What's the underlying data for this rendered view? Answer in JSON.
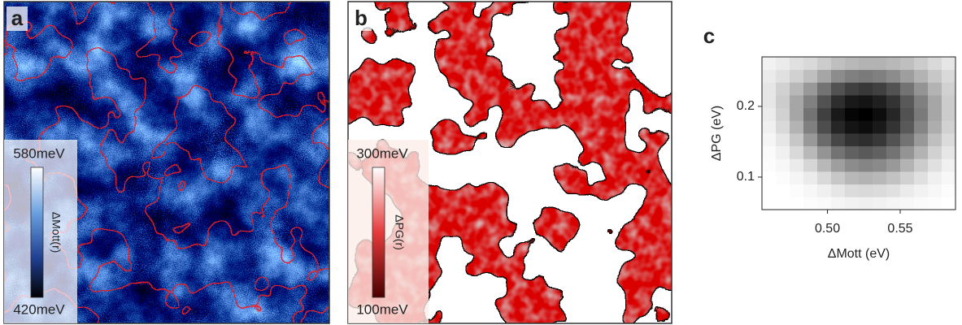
{
  "panels": [
    {
      "label": "a",
      "colorbar": {
        "max_label": "580meV",
        "min_label": "420meV",
        "title": "ΔMott(r)"
      }
    },
    {
      "label": "b",
      "colorbar": {
        "max_label": "300meV",
        "min_label": "100meV",
        "title": "ΔPG(r)"
      }
    }
  ],
  "chart_data": {
    "type": "heatmap",
    "panel_label": "c",
    "xlabel": "ΔMott (eV)",
    "ylabel": "ΔPG (eV)",
    "xlim": [
      0.455,
      0.588
    ],
    "ylim": [
      0.054,
      0.27
    ],
    "xticks": [
      {
        "value": 0.5,
        "label": "0.50"
      },
      {
        "value": 0.55,
        "label": "0.55"
      }
    ],
    "yticks": [
      0.1,
      0.2
    ],
    "x_bins": [
      0.455,
      0.4645,
      0.474,
      0.4835,
      0.493,
      0.5025,
      0.512,
      0.5215,
      0.531,
      0.5405,
      0.55,
      0.5595,
      0.569,
      0.5785,
      0.588
    ],
    "y_bins": [
      0.054,
      0.072,
      0.09,
      0.108,
      0.126,
      0.144,
      0.162,
      0.18,
      0.198,
      0.216,
      0.234,
      0.252,
      0.27
    ],
    "values": [
      [
        0,
        0,
        0,
        1,
        2,
        4,
        5,
        6,
        5,
        4,
        3,
        2,
        1,
        0
      ],
      [
        0,
        0,
        1,
        3,
        6,
        10,
        14,
        15,
        14,
        12,
        8,
        5,
        3,
        1
      ],
      [
        0,
        1,
        4,
        8,
        15,
        22,
        28,
        30,
        28,
        24,
        18,
        12,
        6,
        3
      ],
      [
        1,
        3,
        8,
        16,
        28,
        38,
        45,
        48,
        46,
        40,
        30,
        20,
        12,
        6
      ],
      [
        2,
        6,
        15,
        28,
        42,
        55,
        62,
        65,
        62,
        55,
        42,
        30,
        18,
        10
      ],
      [
        4,
        10,
        22,
        40,
        58,
        72,
        80,
        82,
        78,
        68,
        55,
        40,
        25,
        14
      ],
      [
        6,
        15,
        30,
        50,
        70,
        85,
        92,
        95,
        90,
        80,
        65,
        48,
        32,
        18
      ],
      [
        8,
        18,
        35,
        55,
        75,
        90,
        98,
        100,
        95,
        85,
        68,
        52,
        35,
        20
      ],
      [
        10,
        20,
        35,
        50,
        68,
        82,
        90,
        92,
        88,
        80,
        65,
        50,
        35,
        20
      ],
      [
        10,
        18,
        28,
        40,
        55,
        68,
        75,
        78,
        75,
        68,
        55,
        42,
        30,
        18
      ],
      [
        8,
        12,
        18,
        25,
        35,
        45,
        50,
        52,
        50,
        45,
        38,
        30,
        22,
        15
      ],
      [
        5,
        8,
        12,
        15,
        20,
        25,
        28,
        30,
        30,
        28,
        25,
        20,
        15,
        10
      ]
    ]
  }
}
